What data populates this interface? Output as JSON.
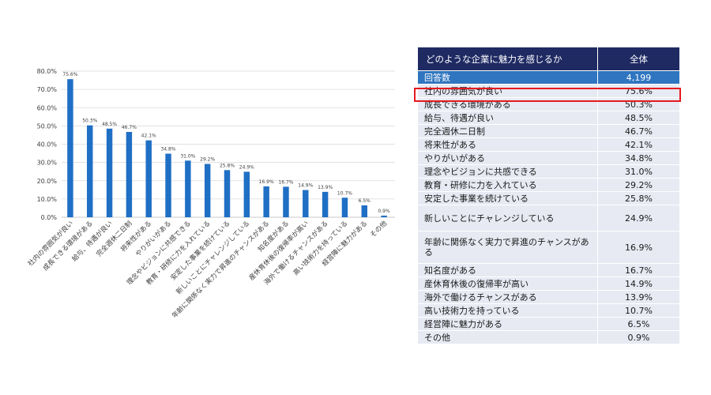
{
  "chart_data": {
    "type": "bar",
    "categories": [
      "社内の雰囲気が良い",
      "成長できる環境がある",
      "給与、待遇が良い",
      "完全週休二日制",
      "将来性がある",
      "やりがいがある",
      "理念やビジョンに共感できる",
      "教育・研修に力を入れている",
      "安定した事業を続けている",
      "新しいことにチャレンジしている",
      "年齢に関係なく実力で昇進のチャンスがある",
      "知名度がある",
      "産休育休後の復帰率が高い",
      "海外で働けるチャンスがある",
      "高い技術力を持っている",
      "経営陣に魅力がある",
      "その他"
    ],
    "values": [
      75.6,
      50.3,
      48.5,
      46.7,
      42.1,
      34.8,
      31.0,
      29.2,
      25.8,
      24.9,
      16.9,
      16.7,
      14.9,
      13.9,
      10.7,
      6.5,
      0.9
    ],
    "value_labels": [
      "75.6%",
      "50.3%",
      "48.5%",
      "46.7%",
      "42.1%",
      "34.8%",
      "31.0%",
      "29.2%",
      "25.8%",
      "24.9%",
      "16.9%",
      "16.7%",
      "14.9%",
      "13.9%",
      "10.7%",
      "6.5%",
      "0.9%"
    ],
    "ylim": [
      0,
      80
    ],
    "yticks": [
      "0.0%",
      "10.0%",
      "20.0%",
      "30.0%",
      "40.0%",
      "50.0%",
      "60.0%",
      "70.0%",
      "80.0%"
    ],
    "grid": true,
    "bar_color": "#1f6fc5",
    "title": "",
    "xlabel": "",
    "ylabel": ""
  },
  "table": {
    "header": {
      "question": "どのような企業に魅力を感じるか",
      "total": "全体"
    },
    "count_row": {
      "label": "回答数",
      "value": "4,199"
    },
    "rows": [
      {
        "label": "社内の雰囲気が良い",
        "value": "75.6%"
      },
      {
        "label": "成長できる環境がある",
        "value": "50.3%"
      },
      {
        "label": "給与、待遇が良い",
        "value": "48.5%"
      },
      {
        "label": "完全週休二日制",
        "value": "46.7%"
      },
      {
        "label": "将来性がある",
        "value": "42.1%"
      },
      {
        "label": "やりがいがある",
        "value": "34.8%"
      },
      {
        "label": "理念やビジョンに共感できる",
        "value": "31.0%"
      },
      {
        "label": "教育・研修に力を入れている",
        "value": "29.2%"
      },
      {
        "label": "安定した事業を続けている",
        "value": "25.8%"
      },
      {
        "label": "新しいことにチャレンジしている",
        "value": "24.9%"
      },
      {
        "label": "年齢に関係なく実力で昇進のチャンスがある",
        "value": "16.9%"
      },
      {
        "label": "知名度がある",
        "value": "16.7%"
      },
      {
        "label": "産休育休後の復帰率が高い",
        "value": "14.9%"
      },
      {
        "label": "海外で働けるチャンスがある",
        "value": "13.9%"
      },
      {
        "label": "高い技術力を持っている",
        "value": "10.7%"
      },
      {
        "label": "経営陣に魅力がある",
        "value": "6.5%"
      },
      {
        "label": "その他",
        "value": "0.9%"
      }
    ],
    "highlight_color": "#e6191e",
    "header_color": "#1f2a63",
    "count_row_color": "#2f75c0"
  }
}
